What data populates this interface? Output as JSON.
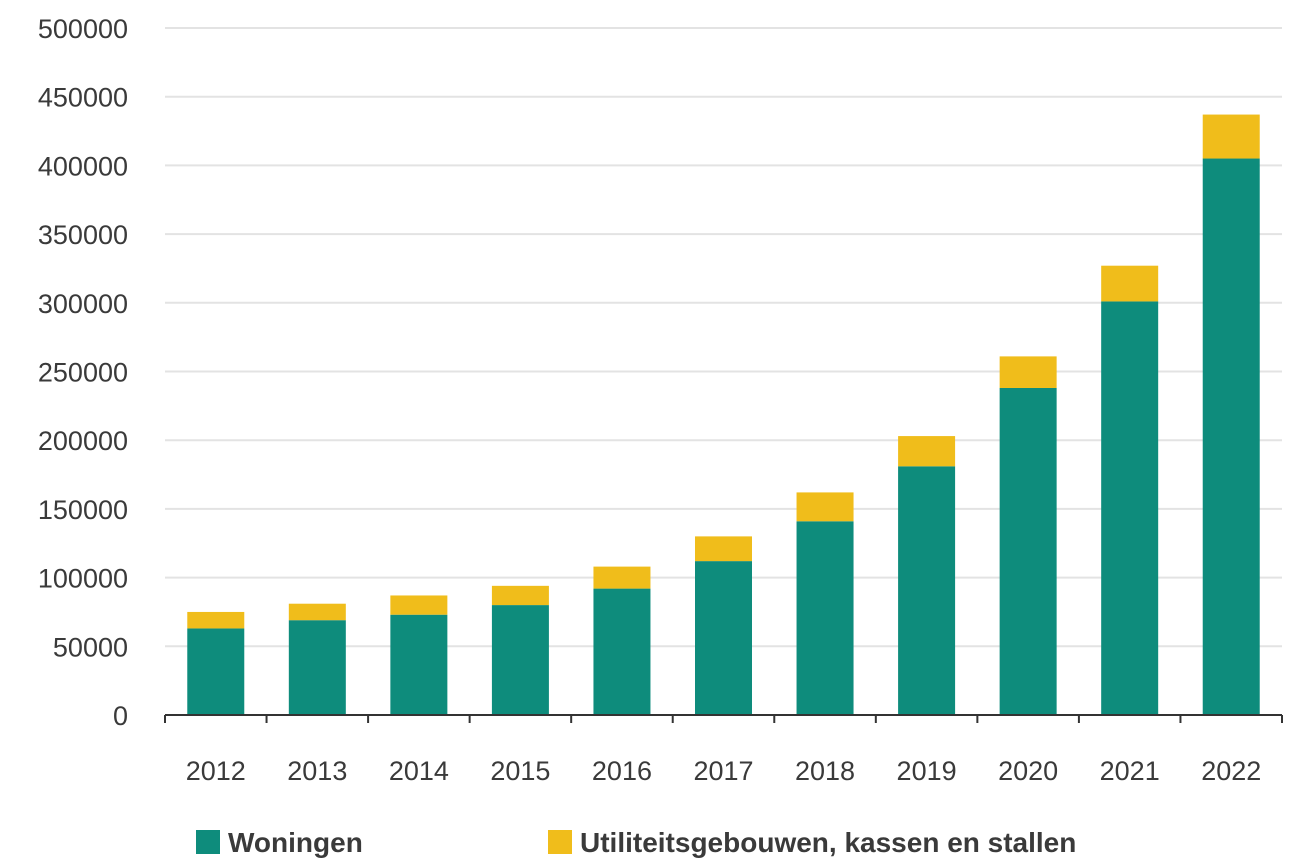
{
  "chart_data": {
    "type": "bar",
    "stacked": true,
    "categories": [
      "2012",
      "2013",
      "2014",
      "2015",
      "2016",
      "2017",
      "2018",
      "2019",
      "2020",
      "2021",
      "2022"
    ],
    "series": [
      {
        "name": "Woningen",
        "color": "#0e8c7c",
        "values": [
          63000,
          69000,
          73000,
          80000,
          92000,
          112000,
          141000,
          181000,
          238000,
          301000,
          405000
        ]
      },
      {
        "name": "Utiliteitsgebouwen, kassen en stallen",
        "color": "#f0bd1b",
        "values": [
          12000,
          12000,
          14000,
          14000,
          16000,
          18000,
          21000,
          22000,
          23000,
          26000,
          32000
        ]
      }
    ],
    "ylim": [
      0,
      500000
    ],
    "yticks": [
      "0",
      "50000",
      "100000",
      "150000",
      "200000",
      "250000",
      "300000",
      "350000",
      "400000",
      "450000",
      "500000"
    ],
    "grid": true,
    "legend_position": "bottom",
    "title": "",
    "xlabel": "",
    "ylabel": ""
  }
}
